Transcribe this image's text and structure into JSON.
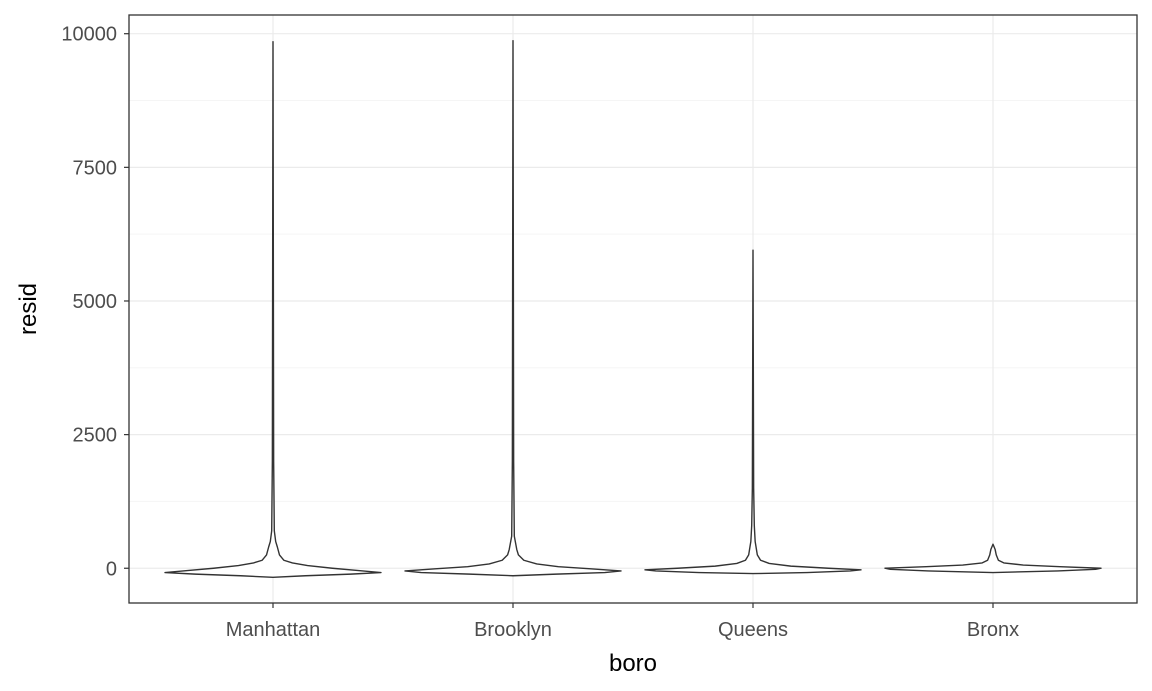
{
  "chart_data": {
    "type": "violin",
    "title": "",
    "xlabel": "boro",
    "ylabel": "resid",
    "categories": [
      "Manhattan",
      "Brooklyn",
      "Queens",
      "Bronx"
    ],
    "ylim": [
      -650,
      10350
    ],
    "yticks": [
      0,
      2500,
      5000,
      7500,
      10000
    ],
    "ytick_labels": [
      "0",
      "2500",
      "5000",
      "7500",
      "10000"
    ],
    "grid": true,
    "theme": "bw",
    "colors": {
      "background": "#ffffff",
      "grid_major": "#ebebeb",
      "grid_minor": "#f5f5f5",
      "panel_border": "#333333",
      "violin_outline": "#333333",
      "violin_fill": "#ffffff"
    },
    "series": [
      {
        "name": "Manhattan",
        "min": -170,
        "max": 9850,
        "profile": [
          {
            "y": -170,
            "w": 0.0
          },
          {
            "y": -140,
            "w": 0.3
          },
          {
            "y": -110,
            "w": 0.72
          },
          {
            "y": -80,
            "w": 1.0
          },
          {
            "y": -40,
            "w": 0.78
          },
          {
            "y": 0,
            "w": 0.55
          },
          {
            "y": 50,
            "w": 0.32
          },
          {
            "y": 100,
            "w": 0.18
          },
          {
            "y": 150,
            "w": 0.1
          },
          {
            "y": 250,
            "w": 0.06
          },
          {
            "y": 400,
            "w": 0.04
          },
          {
            "y": 500,
            "w": 0.025
          },
          {
            "y": 700,
            "w": 0.012
          },
          {
            "y": 2000,
            "w": 0.006
          },
          {
            "y": 9850,
            "w": 0.0
          }
        ]
      },
      {
        "name": "Brooklyn",
        "min": -140,
        "max": 9870,
        "profile": [
          {
            "y": -140,
            "w": 0.0
          },
          {
            "y": -110,
            "w": 0.4
          },
          {
            "y": -80,
            "w": 0.85
          },
          {
            "y": -50,
            "w": 1.0
          },
          {
            "y": -10,
            "w": 0.72
          },
          {
            "y": 30,
            "w": 0.42
          },
          {
            "y": 80,
            "w": 0.22
          },
          {
            "y": 150,
            "w": 0.1
          },
          {
            "y": 250,
            "w": 0.05
          },
          {
            "y": 350,
            "w": 0.035
          },
          {
            "y": 600,
            "w": 0.012
          },
          {
            "y": 2000,
            "w": 0.006
          },
          {
            "y": 9870,
            "w": 0.0
          }
        ]
      },
      {
        "name": "Queens",
        "min": -100,
        "max": 5950,
        "profile": [
          {
            "y": -100,
            "w": 0.0
          },
          {
            "y": -80,
            "w": 0.5
          },
          {
            "y": -50,
            "w": 0.9
          },
          {
            "y": -30,
            "w": 1.0
          },
          {
            "y": 0,
            "w": 0.7
          },
          {
            "y": 40,
            "w": 0.35
          },
          {
            "y": 90,
            "w": 0.15
          },
          {
            "y": 150,
            "w": 0.07
          },
          {
            "y": 250,
            "w": 0.04
          },
          {
            "y": 500,
            "w": 0.02
          },
          {
            "y": 800,
            "w": 0.012
          },
          {
            "y": 1500,
            "w": 0.006
          },
          {
            "y": 5950,
            "w": 0.0
          }
        ]
      },
      {
        "name": "Bronx",
        "min": -80,
        "max": 450,
        "profile": [
          {
            "y": -80,
            "w": 0.0
          },
          {
            "y": -50,
            "w": 0.6
          },
          {
            "y": -20,
            "w": 0.95
          },
          {
            "y": 0,
            "w": 1.0
          },
          {
            "y": 30,
            "w": 0.62
          },
          {
            "y": 60,
            "w": 0.28
          },
          {
            "y": 100,
            "w": 0.1
          },
          {
            "y": 150,
            "w": 0.05
          },
          {
            "y": 250,
            "w": 0.03
          },
          {
            "y": 350,
            "w": 0.02
          },
          {
            "y": 450,
            "w": 0.0
          }
        ]
      }
    ]
  }
}
